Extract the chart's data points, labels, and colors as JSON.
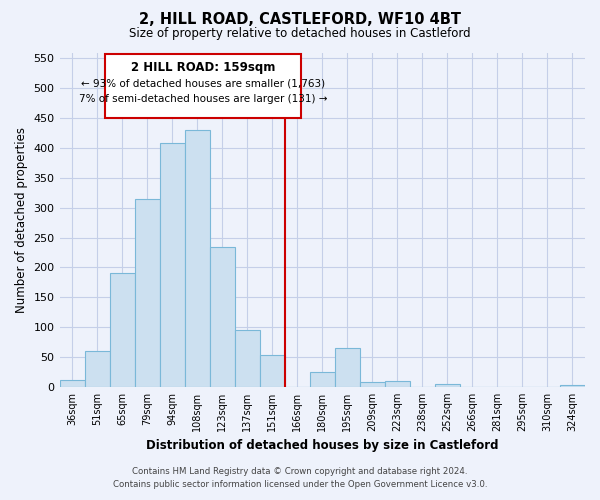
{
  "title": "2, HILL ROAD, CASTLEFORD, WF10 4BT",
  "subtitle": "Size of property relative to detached houses in Castleford",
  "xlabel": "Distribution of detached houses by size in Castleford",
  "ylabel": "Number of detached properties",
  "categories": [
    "36sqm",
    "51sqm",
    "65sqm",
    "79sqm",
    "94sqm",
    "108sqm",
    "123sqm",
    "137sqm",
    "151sqm",
    "166sqm",
    "180sqm",
    "195sqm",
    "209sqm",
    "223sqm",
    "238sqm",
    "252sqm",
    "266sqm",
    "281sqm",
    "295sqm",
    "310sqm",
    "324sqm"
  ],
  "values": [
    12,
    60,
    190,
    315,
    408,
    430,
    235,
    95,
    53,
    0,
    25,
    65,
    8,
    10,
    0,
    5,
    0,
    0,
    0,
    0,
    3
  ],
  "bar_color": "#cce0f0",
  "bar_edge_color": "#7ab8d8",
  "vline_color": "#cc0000",
  "annotation_title": "2 HILL ROAD: 159sqm",
  "annotation_line1": "← 93% of detached houses are smaller (1,763)",
  "annotation_line2": "7% of semi-detached houses are larger (131) →",
  "annotation_box_color": "#ffffff",
  "annotation_box_edge": "#cc0000",
  "ylim": [
    0,
    560
  ],
  "yticks": [
    0,
    50,
    100,
    150,
    200,
    250,
    300,
    350,
    400,
    450,
    500,
    550
  ],
  "footer_line1": "Contains HM Land Registry data © Crown copyright and database right 2024.",
  "footer_line2": "Contains public sector information licensed under the Open Government Licence v3.0.",
  "bg_color": "#eef2fb",
  "grid_color": "#c5cfe8"
}
